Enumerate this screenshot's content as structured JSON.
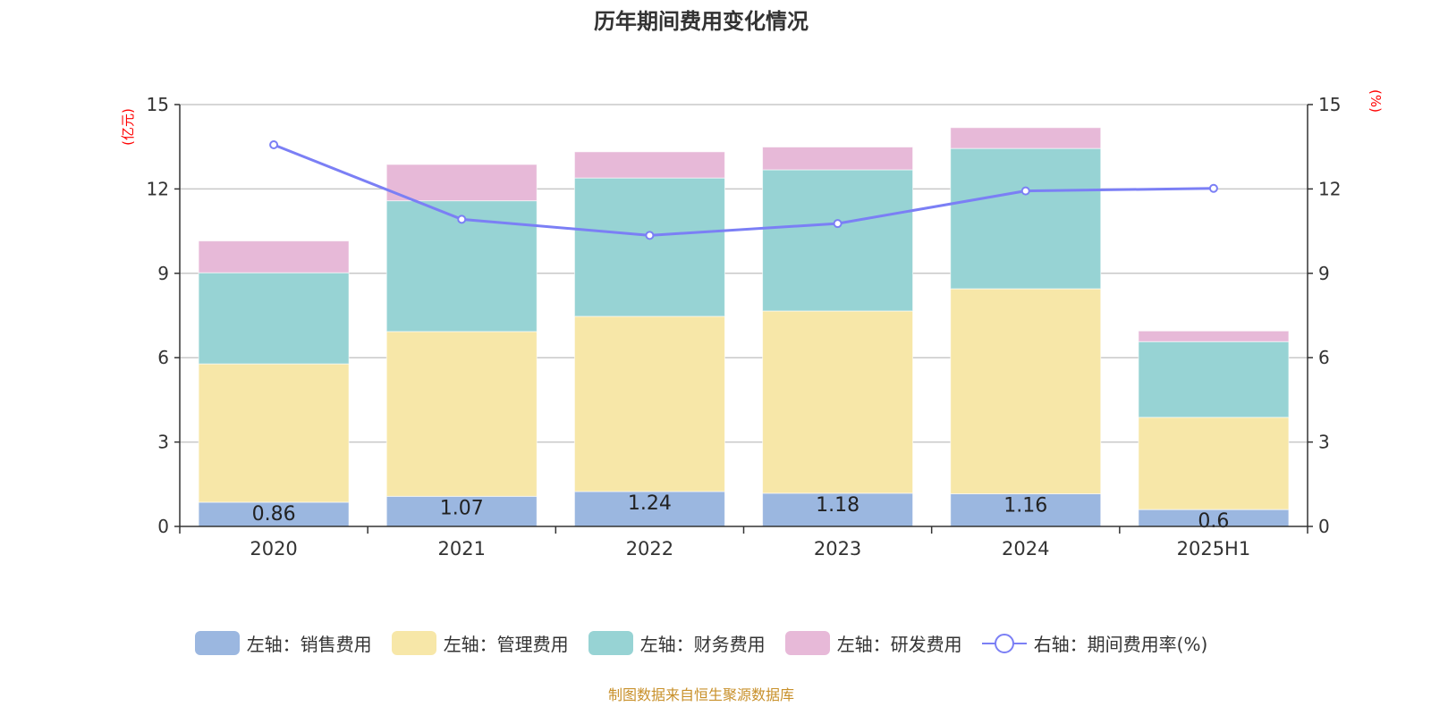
{
  "chart_data": {
    "type": "bar",
    "title": "历年期间费用变化情况",
    "categories": [
      "2020",
      "2021",
      "2022",
      "2023",
      "2024",
      "2025H1"
    ],
    "left_axis": {
      "unit_label": "(亿元)",
      "ylim": [
        0,
        15
      ],
      "ticks": [
        "0",
        "3",
        "6",
        "9",
        "12",
        "15"
      ]
    },
    "right_axis": {
      "unit_label": "(%)",
      "ylim": [
        0,
        15
      ],
      "ticks": [
        "0",
        "3",
        "6",
        "9",
        "12",
        "15"
      ]
    },
    "stacked": true,
    "grid": true,
    "legend_position": "bottom",
    "series": [
      {
        "name": "左轴：销售费用",
        "type": "bar",
        "axis": "left",
        "color": "#9bb7e0",
        "values": [
          0.86,
          1.07,
          1.24,
          1.18,
          1.16,
          0.6
        ],
        "labels": [
          "0.86",
          "1.07",
          "1.24",
          "1.18",
          "1.16",
          "0.6"
        ]
      },
      {
        "name": "左轴：管理费用",
        "type": "bar",
        "axis": "left",
        "color": "#f7e7a8",
        "values": [
          4.92,
          5.86,
          6.23,
          6.48,
          7.29,
          3.28
        ]
      },
      {
        "name": "左轴：财务费用",
        "type": "bar",
        "axis": "left",
        "color": "#97d3d4",
        "values": [
          3.24,
          4.65,
          4.92,
          5.02,
          4.99,
          2.69
        ]
      },
      {
        "name": "左轴：研发费用",
        "type": "bar",
        "axis": "left",
        "color": "#e7b9d8",
        "values": [
          1.13,
          1.29,
          0.93,
          0.81,
          0.74,
          0.38
        ]
      },
      {
        "name": "右轴：期间费用率(%)",
        "type": "line",
        "axis": "right",
        "color": "#7b7ff5",
        "values": [
          13.57,
          10.92,
          10.35,
          10.77,
          11.93,
          12.02
        ]
      }
    ]
  },
  "footer": "制图数据来自恒生聚源数据库"
}
